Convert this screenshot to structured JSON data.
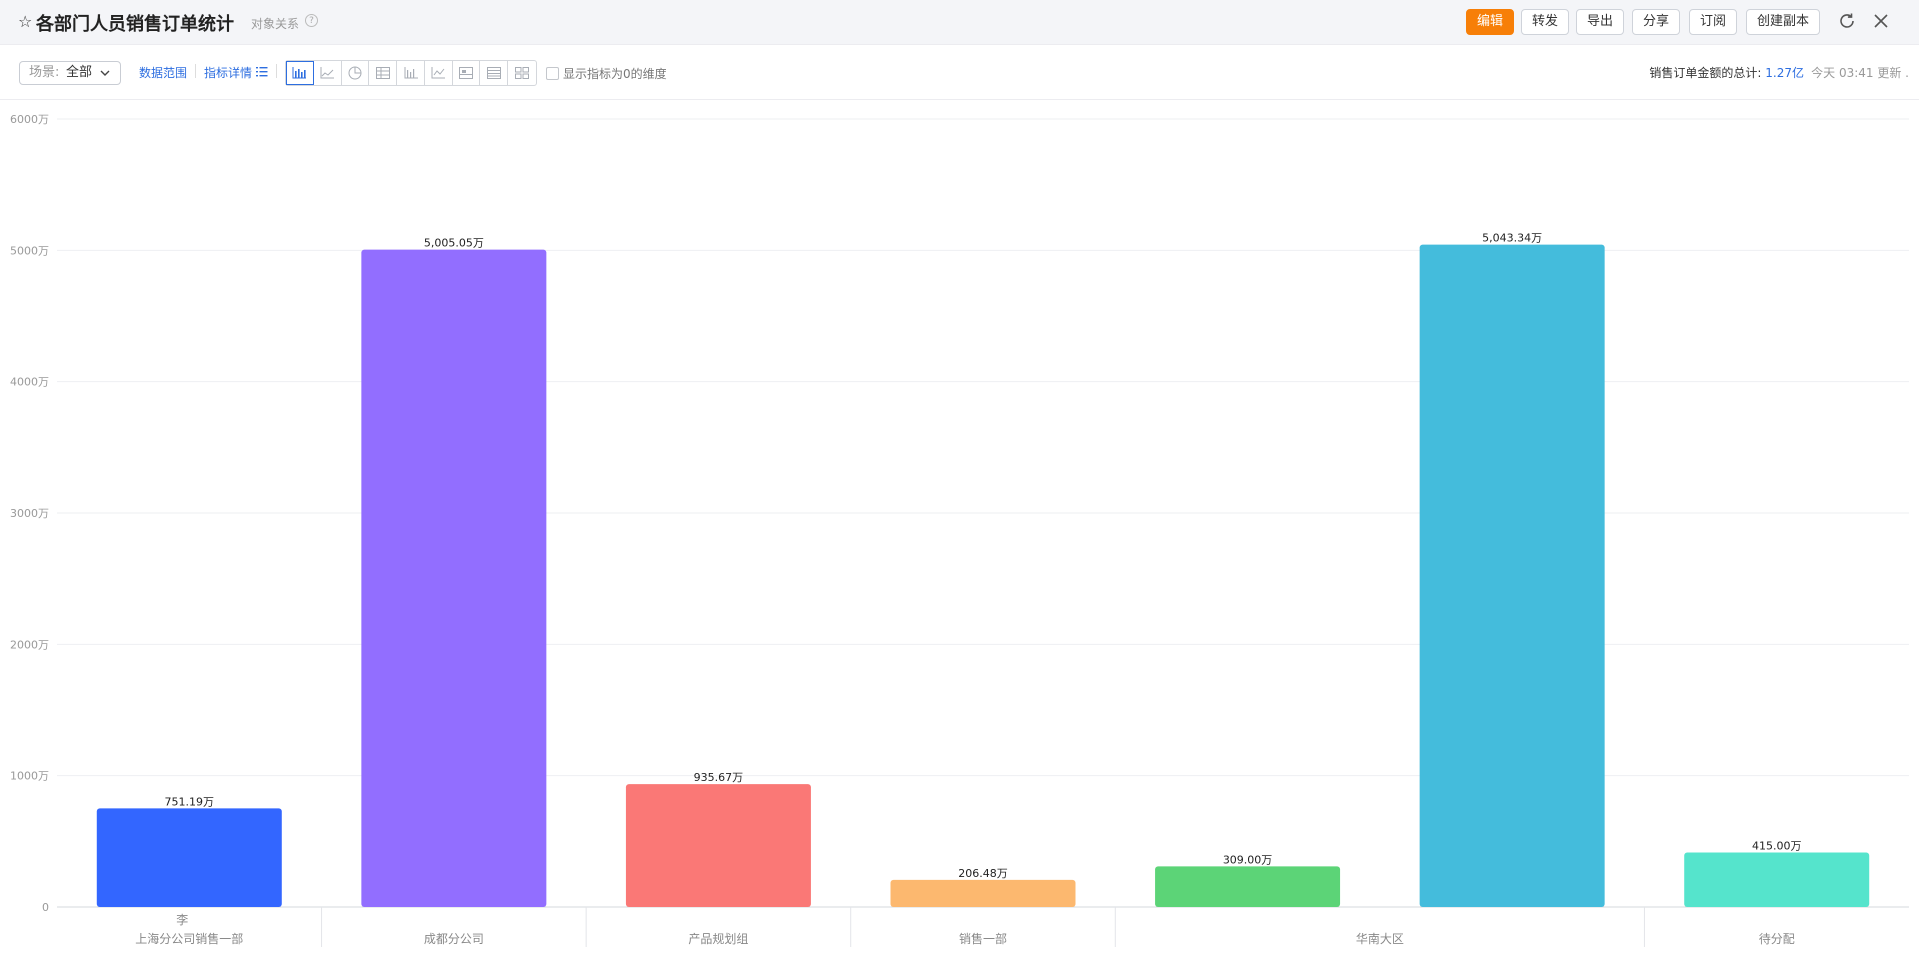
{
  "header": {
    "title": "各部门人员销售订单统计",
    "relation_label": "对象关系",
    "help_symbol": "?",
    "buttons": {
      "edit": "编辑",
      "forward": "转发",
      "export": "导出",
      "share": "分享",
      "subscribe": "订阅",
      "copy": "创建副本"
    }
  },
  "toolbar": {
    "scene_label": "场景:",
    "scene_value": "全部",
    "data_range": "数据范围",
    "metric_detail": "指标详情",
    "show_zero_label": "显示指标为0的维度",
    "total_label": "销售订单金额的总计:",
    "total_value": "1.27亿",
    "updated_text": "今天 03:41 更新 ."
  },
  "chart_data": {
    "type": "bar",
    "unit": "万",
    "ylim": [
      0,
      6000
    ],
    "y_ticks": [
      "0",
      "1000万",
      "2000万",
      "3000万",
      "4000万",
      "5000万",
      "6000万"
    ],
    "grid": true,
    "categories": [
      "上海分公司销售一部",
      "成都分公司",
      "产品规划组",
      "销售一部",
      "华南大区",
      "华南大区",
      "待分配"
    ],
    "group_labels": [
      "上海分公司销售一部",
      "成都分公司",
      "产品规划组",
      "销售一部",
      "华南大区",
      "待分配"
    ],
    "values": [
      751.19,
      5005.05,
      935.67,
      206.48,
      309.0,
      5043.34,
      415.0
    ],
    "value_labels": [
      "751.19万",
      "5,005.05万",
      "935.67万",
      "206.48万",
      "309.00万",
      "5,043.34万",
      "415.00万"
    ],
    "colors": [
      "#3366ff",
      "#926eff",
      "#fa7876",
      "#fcb86f",
      "#5cd477",
      "#44bcdc",
      "#55e4cc"
    ],
    "visible_person_text": "李"
  }
}
